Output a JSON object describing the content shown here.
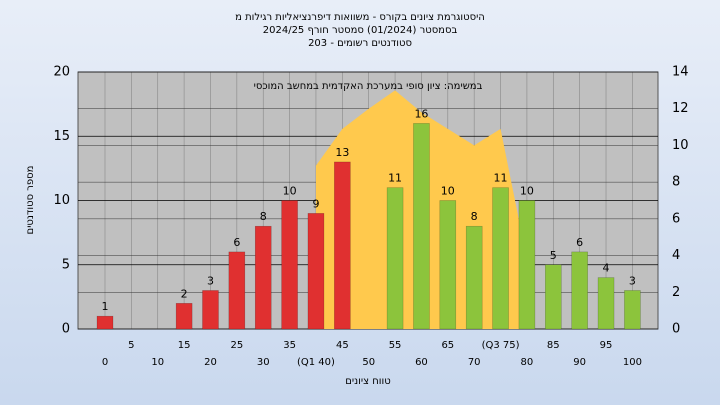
{
  "chart_data": {
    "type": "bar",
    "title_lines": [
      "היסטוגרמת ציונים בקורס - משוואות דיפרנציאליות רגילות מ",
      "בסמסטר (01/2024) סמסטר חורף 2024/25",
      "סטודנטים רשומים - 203"
    ],
    "annotation": "במשימה: ציון סופי במערכת האקדמית במחשב המוכסי",
    "xlabel": "טווח ציונים",
    "ylabel": "מספר סטודנטים",
    "categories": [
      "0",
      "5",
      "10",
      "15",
      "20",
      "25",
      "30",
      "35",
      "(Q1 40)",
      "45",
      "50",
      "55",
      "60",
      "65",
      "70",
      "(Q3 75)",
      "80",
      "85",
      "90",
      "95",
      "100"
    ],
    "values": [
      1,
      0,
      0,
      2,
      3,
      6,
      8,
      10,
      9,
      13,
      0,
      11,
      16,
      10,
      8,
      11,
      10,
      5,
      6,
      4,
      3
    ],
    "colors": [
      "#e03030",
      "#e03030",
      "#e03030",
      "#e03030",
      "#e03030",
      "#e03030",
      "#e03030",
      "#e03030",
      "#e03030",
      "#e03030",
      "#e03030",
      "#8cc43c",
      "#8cc43c",
      "#8cc43c",
      "#8cc43c",
      "#8cc43c",
      "#8cc43c",
      "#8cc43c",
      "#8cc43c",
      "#8cc43c",
      "#8cc43c"
    ],
    "area": {
      "color": "#ffc94d",
      "axis": "y2",
      "values": [
        null,
        null,
        null,
        null,
        null,
        null,
        null,
        null,
        8.9,
        10.9,
        12,
        13,
        11.8,
        10.9,
        10,
        10.9,
        3.8,
        null,
        null,
        null,
        null
      ]
    },
    "ylim": [
      0,
      20
    ],
    "yticks": [
      0,
      5,
      10,
      15,
      20
    ],
    "y2lim": [
      0,
      14
    ],
    "y2ticks": [
      0,
      2,
      4,
      6,
      8,
      10,
      12,
      14
    ],
    "grid": true
  }
}
